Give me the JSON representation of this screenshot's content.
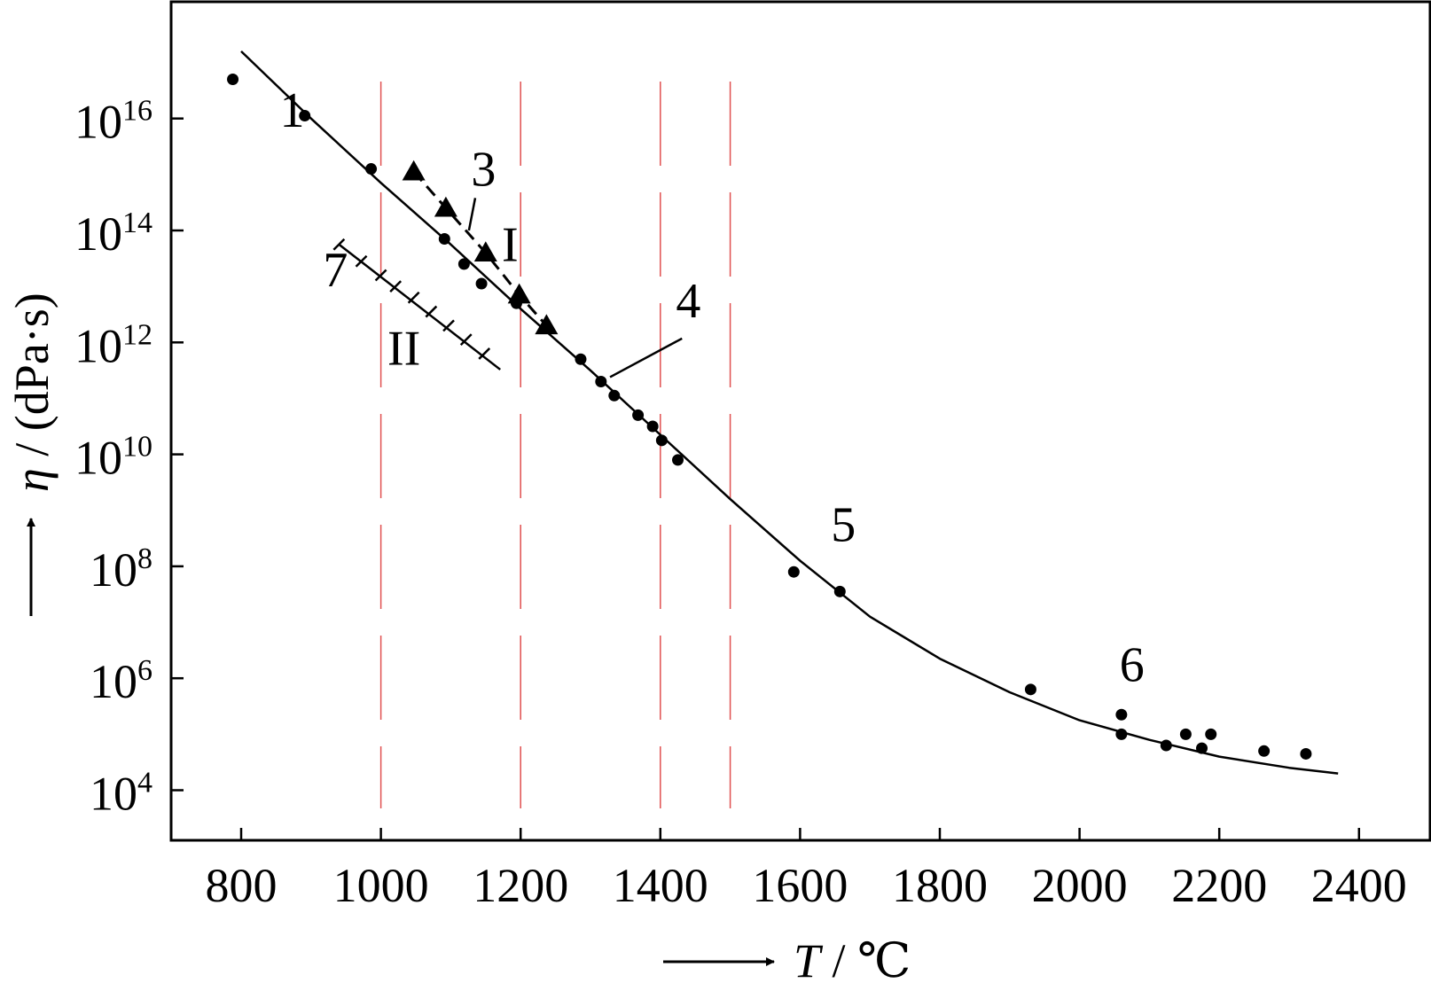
{
  "chart_data": {
    "type": "scatter",
    "x_axis": {
      "label_symbol": "T",
      "label_unit": " / ℃",
      "range": [
        680,
        2540
      ],
      "ticks": [
        800,
        1000,
        1200,
        1400,
        1600,
        1800,
        2000,
        2200,
        2400
      ],
      "tick_labels": [
        "800",
        "1000",
        "1200",
        "1400",
        "1600",
        "1800",
        "2000",
        "2200",
        "2400"
      ]
    },
    "y_axis": {
      "label_symbol": "η",
      "label_unit": " / (dPa·s)",
      "scale": "log",
      "range_exp": [
        3.6,
        18.0
      ],
      "ticks_exp": [
        4,
        6,
        8,
        10,
        12,
        14,
        16
      ],
      "tick_base": "10",
      "tick_exponents": [
        "4",
        "6",
        "8",
        "10",
        "12",
        "14",
        "16"
      ]
    },
    "reference_lines_x": [
      1000,
      1200,
      1400,
      1500
    ],
    "reference_line_color": "#e05050",
    "curve": {
      "color": "#000000",
      "points": [
        [
          800,
          17.2
        ],
        [
          900,
          16.0
        ],
        [
          1000,
          14.85
        ],
        [
          1100,
          13.75
        ],
        [
          1200,
          12.6
        ],
        [
          1300,
          11.5
        ],
        [
          1400,
          10.35
        ],
        [
          1500,
          9.2
        ],
        [
          1600,
          8.1
        ],
        [
          1700,
          7.1
        ],
        [
          1800,
          6.35
        ],
        [
          1900,
          5.75
        ],
        [
          2000,
          5.25
        ],
        [
          2100,
          4.9
        ],
        [
          2200,
          4.6
        ],
        [
          2300,
          4.4
        ],
        [
          2370,
          4.3
        ]
      ]
    },
    "series": [
      {
        "marker": "circle",
        "points": [
          [
            788,
            16.7
          ],
          [
            891,
            16.05
          ],
          [
            986,
            15.1
          ],
          [
            1091,
            13.85
          ],
          [
            1119,
            13.4
          ],
          [
            1144,
            13.05
          ],
          [
            1194,
            12.7
          ],
          [
            1286,
            11.7
          ],
          [
            1315,
            11.3
          ],
          [
            1334,
            11.05
          ],
          [
            1368,
            10.7
          ],
          [
            1389,
            10.5
          ],
          [
            1402,
            10.25
          ],
          [
            1425,
            9.9
          ],
          [
            1591,
            7.9
          ],
          [
            1657,
            7.55
          ],
          [
            1930,
            5.8
          ],
          [
            2060,
            5.35
          ],
          [
            2060,
            5.0
          ],
          [
            2124,
            4.8
          ],
          [
            2152,
            5.0
          ],
          [
            2175,
            4.75
          ],
          [
            2188,
            5.0
          ],
          [
            2264,
            4.7
          ],
          [
            2324,
            4.65
          ]
        ]
      },
      {
        "marker": "triangle",
        "points": [
          [
            1047,
            15.05
          ],
          [
            1093,
            14.4
          ],
          [
            1150,
            13.6
          ],
          [
            1198,
            12.85
          ],
          [
            1237,
            12.3
          ]
        ]
      },
      {
        "marker": "cross",
        "points": [
          [
            940,
            13.75
          ],
          [
            972,
            13.45
          ],
          [
            1000,
            13.2
          ],
          [
            1021,
            13.0
          ],
          [
            1047,
            12.8
          ],
          [
            1072,
            12.55
          ],
          [
            1097,
            12.3
          ],
          [
            1122,
            12.05
          ],
          [
            1148,
            11.8
          ]
        ]
      }
    ],
    "annotations": [
      {
        "text": "1",
        "x": 873,
        "y": 15.85
      },
      {
        "text": "3",
        "x": 1147,
        "y": 14.8
      },
      {
        "text": "I",
        "x": 1185,
        "y": 13.45
      },
      {
        "text": "4",
        "x": 1440,
        "y": 12.45
      },
      {
        "text": "5",
        "x": 1662,
        "y": 8.45
      },
      {
        "text": "6",
        "x": 2075,
        "y": 5.95
      },
      {
        "text": "7",
        "x": 935,
        "y": 13.0
      },
      {
        "text": "II",
        "x": 1033,
        "y": 11.6
      }
    ],
    "leader_lines": [
      {
        "from": [
          1135,
          14.58
        ],
        "to": [
          1126,
          14.0
        ]
      },
      {
        "from": [
          1431,
          12.07
        ],
        "to": [
          1328,
          11.38
        ]
      }
    ]
  }
}
